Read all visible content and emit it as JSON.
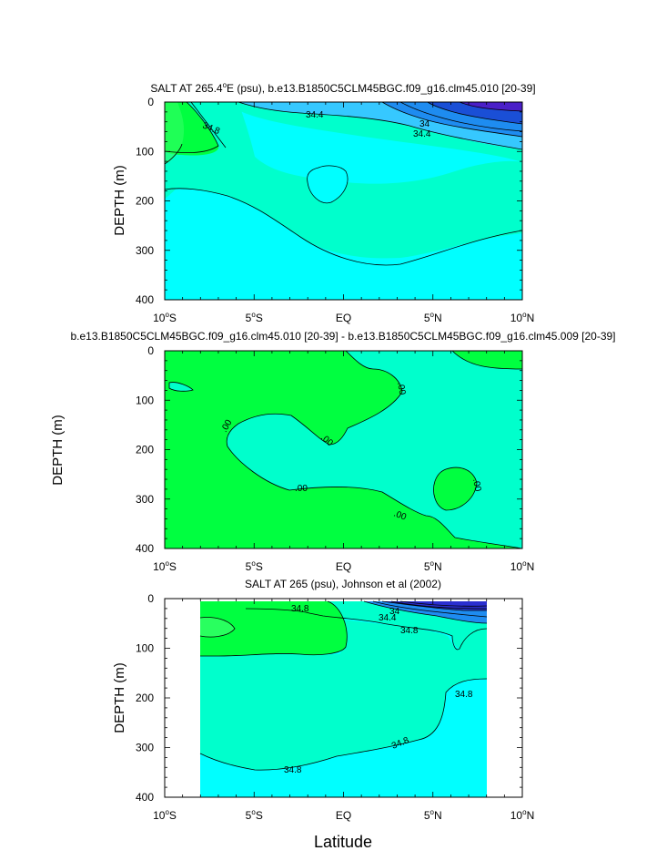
{
  "figure": {
    "xlabel": "Latitude"
  },
  "chart_data": [
    {
      "type": "contour",
      "title": "SALT AT 265.4°E (psu), b.e13.B1850C5CLM45BGC.f09_g16.clm45.010 [20-39]",
      "title_parts": {
        "main": "SALT AT 265.4",
        "sup": "o",
        "rest": "E (psu), b.e13.B1850C5CLM45BGC.f09_g16.clm45.010 [20-39]"
      },
      "ylabel": "DEPTH (m)",
      "xlim": [
        -10,
        10
      ],
      "ylim": [
        0,
        400
      ],
      "y_inverted": true,
      "x_ticks": [
        -10,
        -5,
        0,
        5,
        10
      ],
      "y_ticks": [
        0,
        100,
        200,
        300,
        400
      ],
      "contour_labels": [
        "34.4",
        "34.8",
        "34",
        "34.4"
      ],
      "colors": {
        "max": "#00ff40",
        "high": "#00ffcc",
        "mid": "#00ffff",
        "low1": "#36c8ff",
        "low2": "#1e8cf0",
        "low3": "#1a4fd6",
        "min": "#4a1fc8"
      }
    },
    {
      "type": "contour",
      "title": "b.e13.B1850C5CLM45BGC.f09_g16.clm45.010 [20-39] - b.e13.B1850C5CLM45BGC.f09_g16.clm45.009 [20-39]",
      "ylabel": "DEPTH (m)",
      "xlim": [
        -10,
        10
      ],
      "ylim": [
        0,
        400
      ],
      "y_inverted": true,
      "x_ticks": [
        -10,
        -5,
        0,
        5,
        10
      ],
      "y_ticks": [
        0,
        100,
        200,
        300,
        400
      ],
      "contour_labels": [
        ".00",
        ".00",
        ".00",
        ".00",
        ".00",
        ".00"
      ],
      "colors": {
        "positive": "#00ff40",
        "negative": "#00ffcc"
      }
    },
    {
      "type": "contour",
      "title": "SALT AT 265 (psu), Johnson et al (2002)",
      "ylabel": "DEPTH (m)",
      "xlim": [
        -10,
        10
      ],
      "ylim": [
        0,
        400
      ],
      "y_inverted": true,
      "data_xlim": [
        -8,
        8
      ],
      "data_ylim": [
        0,
        400
      ],
      "x_ticks": [
        -10,
        -5,
        0,
        5,
        10
      ],
      "y_ticks": [
        0,
        100,
        200,
        300,
        400
      ],
      "contour_labels": [
        "34.8",
        "34",
        "34.4",
        "34.8",
        "34.8",
        "34.8",
        "34.8"
      ],
      "colors": {
        "max": "#00ff40",
        "high": "#00ffcc",
        "mid": "#00ffff",
        "low1": "#1e8cf0",
        "min": "#2a2fd0"
      }
    }
  ],
  "tick_labels_x": [
    {
      "num": "10",
      "sup": "o",
      "dir": "S"
    },
    {
      "num": "5",
      "sup": "o",
      "dir": "S"
    },
    {
      "num": "EQ",
      "sup": "",
      "dir": ""
    },
    {
      "num": "5",
      "sup": "o",
      "dir": "N"
    },
    {
      "num": "10",
      "sup": "o",
      "dir": "N"
    }
  ],
  "tick_labels_y": [
    "0",
    "100",
    "200",
    "300",
    "400"
  ]
}
